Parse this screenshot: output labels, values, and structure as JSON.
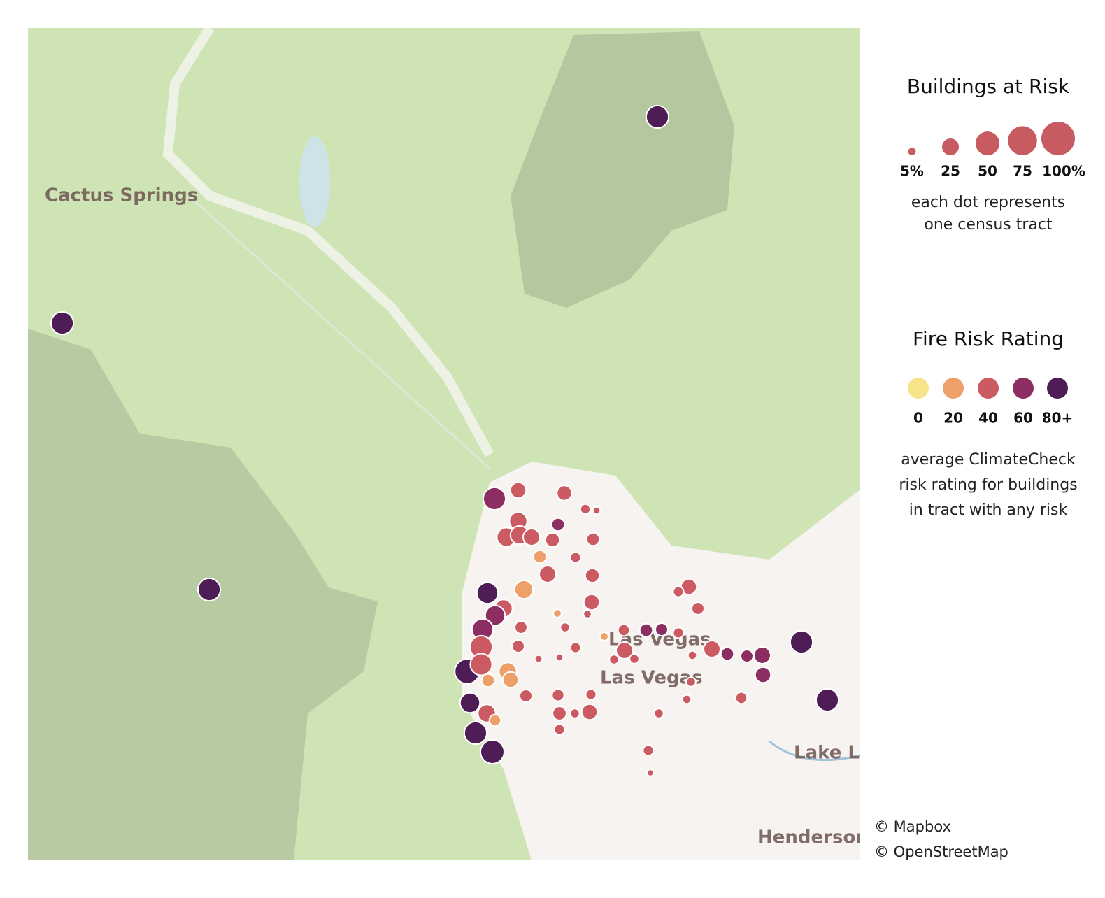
{
  "size_legend": {
    "title": "Buildings at Risk",
    "ticks": [
      {
        "value": 5,
        "label": "5%"
      },
      25,
      50,
      75,
      {
        "value": 100,
        "label": "100%"
      }
    ],
    "color": "#c85a62",
    "note": [
      "each dot represents",
      "one census tract"
    ]
  },
  "color_legend": {
    "title": "Fire Risk Rating",
    "ticks": [
      0,
      20,
      40,
      60,
      {
        "value": 80,
        "label": "80+"
      }
    ],
    "colors": [
      "#f7e38a",
      "#eea06a",
      "#cc5a62",
      "#8c2e62",
      "#4e1d56"
    ],
    "note": [
      "average ClimateCheck",
      "risk rating for buildings",
      "in tract with any risk"
    ]
  },
  "places": [
    "Cactus Springs",
    "Las Vegas",
    "Las Vegas",
    "Lake Las Vegas",
    "Henderson"
  ],
  "attribution": [
    "© Mapbox",
    "© OpenStreetMap"
  ],
  "tracts": [
    {
      "buildings_pct": 45,
      "rating": 85
    },
    {
      "buildings_pct": 45,
      "rating": 85
    },
    {
      "buildings_pct": 45,
      "rating": 85
    },
    {
      "buildings_pct": 45,
      "rating": 85
    },
    {
      "buildings_pct": 45,
      "rating": 85
    },
    {
      "buildings_pct": 50,
      "rating": 85
    },
    {
      "buildings_pct": 45,
      "rating": 85
    },
    {
      "buildings_pct": 35,
      "rating": 85
    },
    {
      "buildings_pct": 55,
      "rating": 80
    },
    {
      "buildings_pct": 40,
      "rating": 85
    },
    {
      "buildings_pct": 45,
      "rating": 62
    },
    {
      "buildings_pct": 22,
      "rating": 55
    },
    {
      "buildings_pct": 20,
      "rating": 45
    },
    {
      "buildings_pct": 28,
      "rating": 50
    },
    {
      "buildings_pct": 32,
      "rating": 45
    },
    {
      "buildings_pct": 30,
      "rating": 55
    },
    {
      "buildings_pct": 25,
      "rating": 50
    },
    {
      "buildings_pct": 18,
      "rating": 55
    },
    {
      "buildings_pct": 15,
      "rating": 60
    },
    {
      "buildings_pct": 15,
      "rating": 25
    },
    {
      "buildings_pct": 25,
      "rating": 45
    },
    {
      "buildings_pct": 15,
      "rating": 45
    },
    {
      "buildings_pct": 9,
      "rating": 45
    },
    {
      "buildings_pct": 5,
      "rating": 40
    },
    {
      "buildings_pct": 10,
      "rating": 45
    },
    {
      "buildings_pct": 18,
      "rating": 45
    },
    {
      "buildings_pct": 22,
      "rating": 45
    },
    {
      "buildings_pct": 30,
      "rating": 25
    },
    {
      "buildings_pct": 28,
      "rating": 40
    },
    {
      "buildings_pct": 35,
      "rating": 60
    },
    {
      "buildings_pct": 40,
      "rating": 65
    },
    {
      "buildings_pct": 45,
      "rating": 55
    },
    {
      "buildings_pct": 42,
      "rating": 40
    },
    {
      "buildings_pct": 28,
      "rating": 28
    },
    {
      "buildings_pct": 22,
      "rating": 25
    },
    {
      "buildings_pct": 15,
      "rating": 28
    },
    {
      "buildings_pct": 28,
      "rating": 45
    },
    {
      "buildings_pct": 12,
      "rating": 35
    },
    {
      "buildings_pct": 14,
      "rating": 45
    },
    {
      "buildings_pct": 13,
      "rating": 45
    },
    {
      "buildings_pct": 17,
      "rating": 45
    },
    {
      "buildings_pct": 22,
      "rating": 45
    },
    {
      "buildings_pct": 10,
      "rating": 45
    },
    {
      "buildings_pct": 10,
      "rating": 45
    },
    {
      "buildings_pct": 8,
      "rating": 45
    },
    {
      "buildings_pct": 6,
      "rating": 30
    },
    {
      "buildings_pct": 8,
      "rating": 55
    },
    {
      "buildings_pct": 10,
      "rating": 45
    },
    {
      "buildings_pct": 25,
      "rating": 45
    },
    {
      "buildings_pct": 12,
      "rating": 40
    },
    {
      "buildings_pct": 6,
      "rating": 30
    },
    {
      "buildings_pct": 15,
      "rating": 65
    },
    {
      "buildings_pct": 14,
      "rating": 60
    },
    {
      "buildings_pct": 10,
      "rating": 50
    },
    {
      "buildings_pct": 22,
      "rating": 55
    },
    {
      "buildings_pct": 14,
      "rating": 55
    },
    {
      "buildings_pct": 10,
      "rating": 55
    },
    {
      "buildings_pct": 25,
      "rating": 55
    },
    {
      "buildings_pct": 15,
      "rating": 60
    },
    {
      "buildings_pct": 14,
      "rating": 70
    },
    {
      "buildings_pct": 25,
      "rating": 60
    },
    {
      "buildings_pct": 22,
      "rating": 62
    },
    {
      "buildings_pct": 12,
      "rating": 45
    },
    {
      "buildings_pct": 8,
      "rating": 45
    },
    {
      "buildings_pct": 7,
      "rating": 45
    },
    {
      "buildings_pct": 8,
      "rating": 55
    },
    {
      "buildings_pct": 10,
      "rating": 50
    },
    {
      "buildings_pct": 4,
      "rating": 45
    },
    {
      "buildings_pct": 8,
      "rating": 55
    },
    {
      "buildings_pct": 8,
      "rating": 55
    },
    {
      "buildings_pct": 7,
      "rating": 45
    },
    {
      "buildings_pct": 5,
      "rating": 50
    },
    {
      "buildings_pct": 5,
      "rating": 45
    },
    {
      "buildings_pct": 6,
      "rating": 40
    },
    {
      "buildings_pct": 14,
      "rating": 45
    },
    {
      "buildings_pct": 14,
      "rating": 50
    }
  ]
}
